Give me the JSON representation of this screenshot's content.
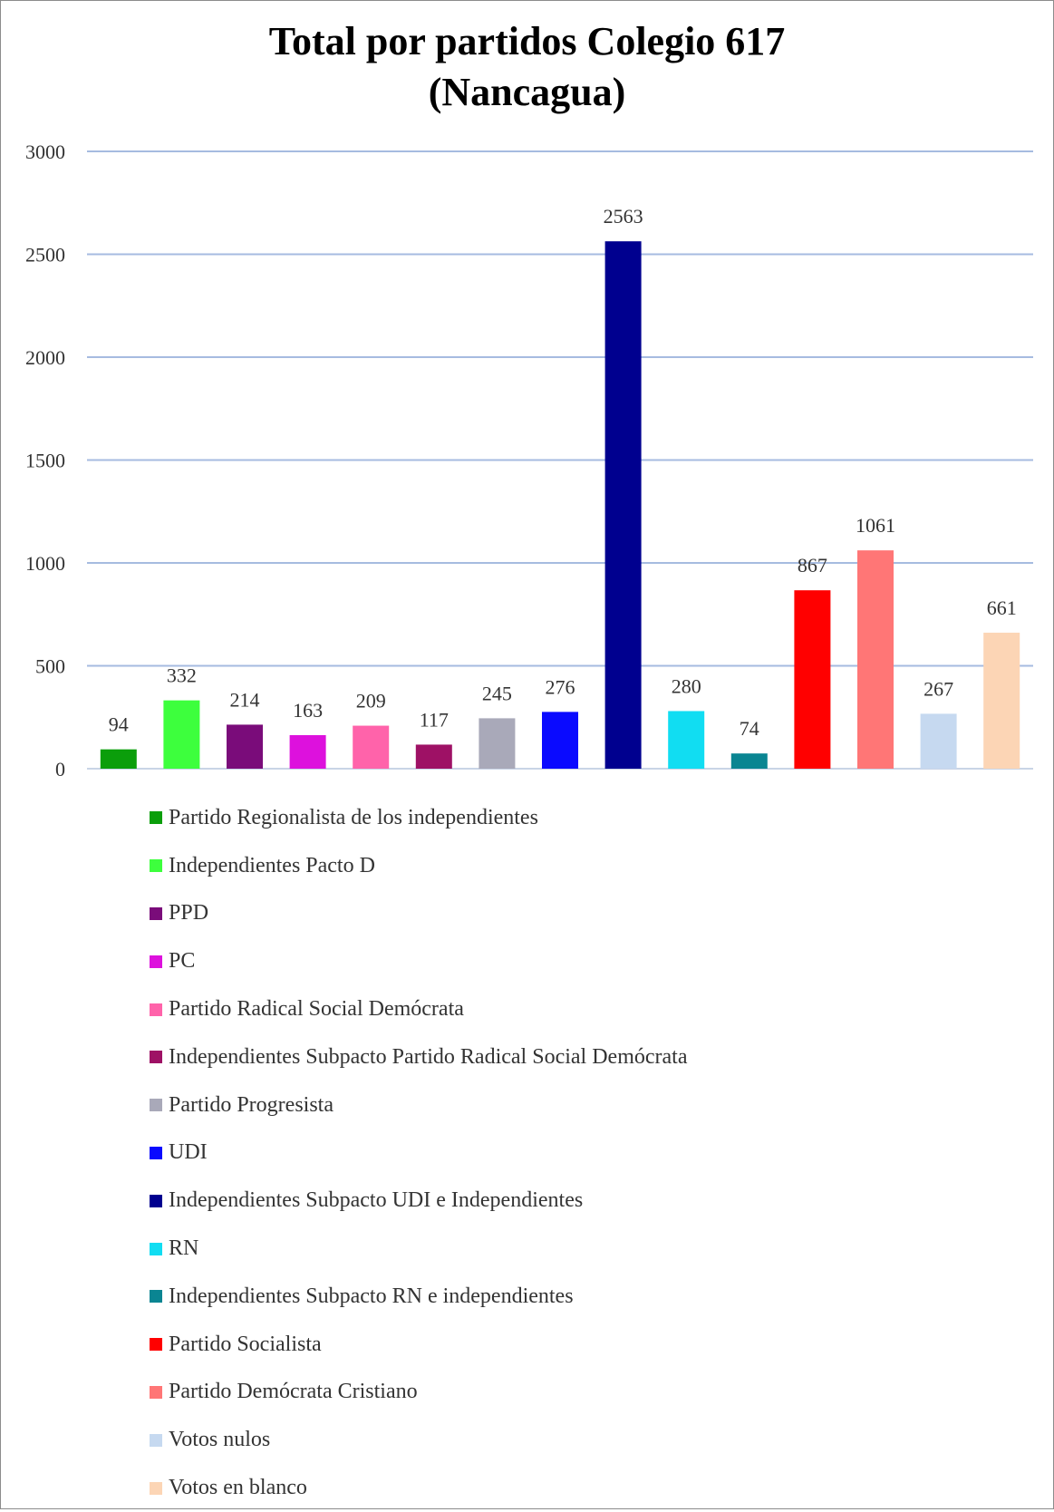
{
  "chart_data": {
    "type": "bar",
    "title": [
      "Total por partidos Colegio 617",
      "(Nancagua)"
    ],
    "xlabel": "",
    "ylabel": "",
    "ylim": [
      0,
      3000
    ],
    "yticks": [
      0,
      500,
      1000,
      1500,
      2000,
      2500,
      3000
    ],
    "grid": true,
    "legend_position": "bottom",
    "series": [
      {
        "name": "Partido Regionalista de los independientes",
        "value": 94,
        "color": "#0b9e0b"
      },
      {
        "name": "Independientes Pacto D",
        "value": 332,
        "color": "#3dff3d"
      },
      {
        "name": "PPD",
        "value": 214,
        "color": "#7a0c7a"
      },
      {
        "name": "PC",
        "value": 163,
        "color": "#dd11dd"
      },
      {
        "name": "Partido Radical Social Demócrata",
        "value": 209,
        "color": "#ff63aa"
      },
      {
        "name": "Independientes Subpacto Partido Radical Social Demócrata",
        "value": 117,
        "color": "#9e1165"
      },
      {
        "name": "Partido Progresista",
        "value": 245,
        "color": "#a9a9b9"
      },
      {
        "name": "UDI",
        "value": 276,
        "color": "#0a0aff"
      },
      {
        "name": "Independientes Subpacto UDI e Independientes",
        "value": 2563,
        "color": "#00008f"
      },
      {
        "name": "RN",
        "value": 280,
        "color": "#11ddf2"
      },
      {
        "name": "Independientes Subpacto RN e independientes",
        "value": 74,
        "color": "#0a8592"
      },
      {
        "name": "Partido Socialista",
        "value": 867,
        "color": "#ff0000"
      },
      {
        "name": "Partido Demócrata Cristiano",
        "value": 1061,
        "color": "#ff7676"
      },
      {
        "name": "Votos nulos",
        "value": 267,
        "color": "#c6d9f0"
      },
      {
        "name": "Votos en blanco",
        "value": 661,
        "color": "#fcd5b5"
      }
    ]
  }
}
